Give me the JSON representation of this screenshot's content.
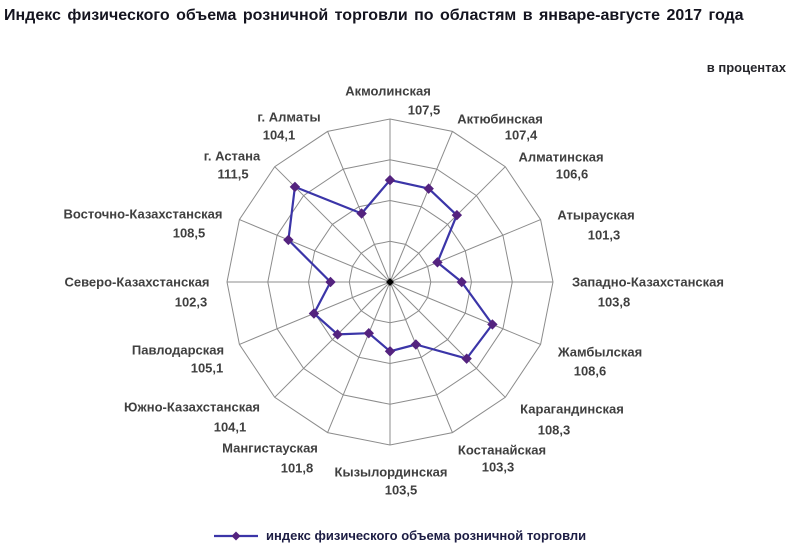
{
  "chart_data": {
    "type": "radar",
    "title": "Индекс физического объема розничной торговли по областям в январе-августе 2017 года",
    "units": "в процентах",
    "categories": [
      "Акмолинская",
      "Актюбинская",
      "Алматинская",
      "Атырауская",
      "Западно-Казахстанская",
      "Жамбылская",
      "Карагандинская",
      "Костанайская",
      "Кызылординская",
      "Мангистауская",
      "Южно-Казахстанская",
      "Павлодарская",
      "Северо-Казахстанская",
      "Восточно-Казахстанская",
      "г. Астана",
      "г. Алматы"
    ],
    "series": [
      {
        "name": "индекс физического объема розничной торговли",
        "values": [
          107.5,
          107.4,
          106.6,
          101.3,
          103.8,
          108.6,
          108.3,
          103.3,
          103.5,
          101.8,
          104.1,
          105.1,
          102.3,
          108.5,
          111.5,
          104.1
        ]
      }
    ],
    "values_display": [
      "107,5",
      "107,4",
      "106,6",
      "101,3",
      "103,8",
      "108,6",
      "108,3",
      "103,3",
      "103,5",
      "101,8",
      "104,1",
      "105,1",
      "102,3",
      "108,5",
      "111,5",
      "104,1"
    ],
    "axis_range": [
      95,
      115
    ],
    "axis_step": 5,
    "grid": true,
    "legend_position": "bottom",
    "colors": {
      "line": "#3B35A8",
      "marker": "#54237F",
      "grid": "#8C8C8C",
      "center_dot": "#000000"
    }
  }
}
